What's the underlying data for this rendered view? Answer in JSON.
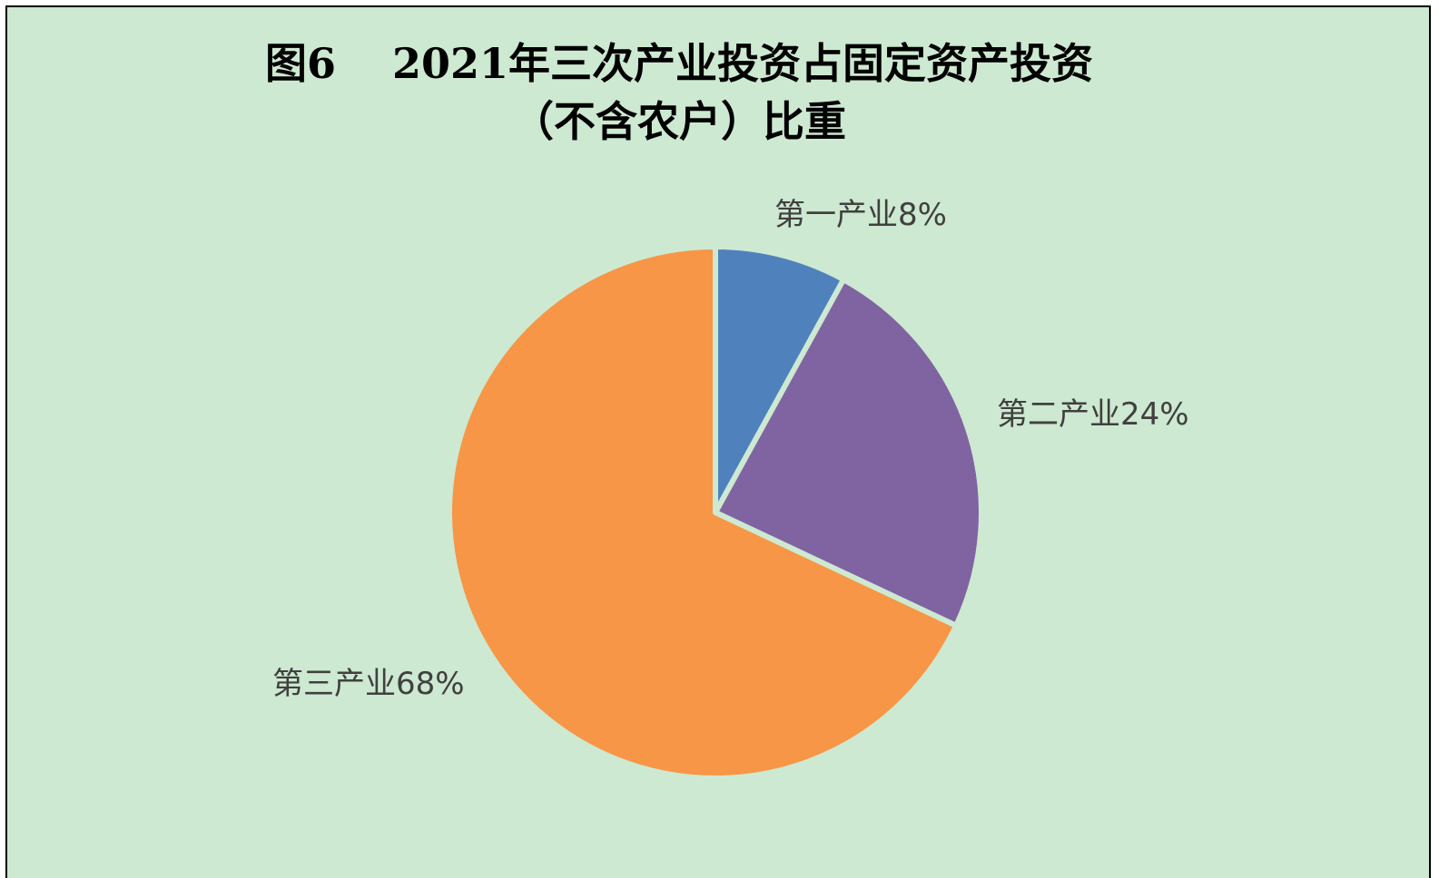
{
  "chart_data": {
    "type": "pie",
    "title_lines": [
      "图6　 2021年三次产业投资占固定资产投资",
      "（不含农户）比重"
    ],
    "slices": [
      {
        "label": "第一产业8%",
        "name": "第一产业",
        "value": 8,
        "color": "#4f81bd"
      },
      {
        "label": "第二产业24%",
        "name": "第二产业",
        "value": 24,
        "color": "#8064a2"
      },
      {
        "label": "第三产业68%",
        "name": "第三产业",
        "value": 68,
        "color": "#f79646"
      }
    ],
    "start_angle": "12 o'clock",
    "direction": "clockwise",
    "legend": "none",
    "background_color": "#cde9d1",
    "label_color": "#404040"
  }
}
